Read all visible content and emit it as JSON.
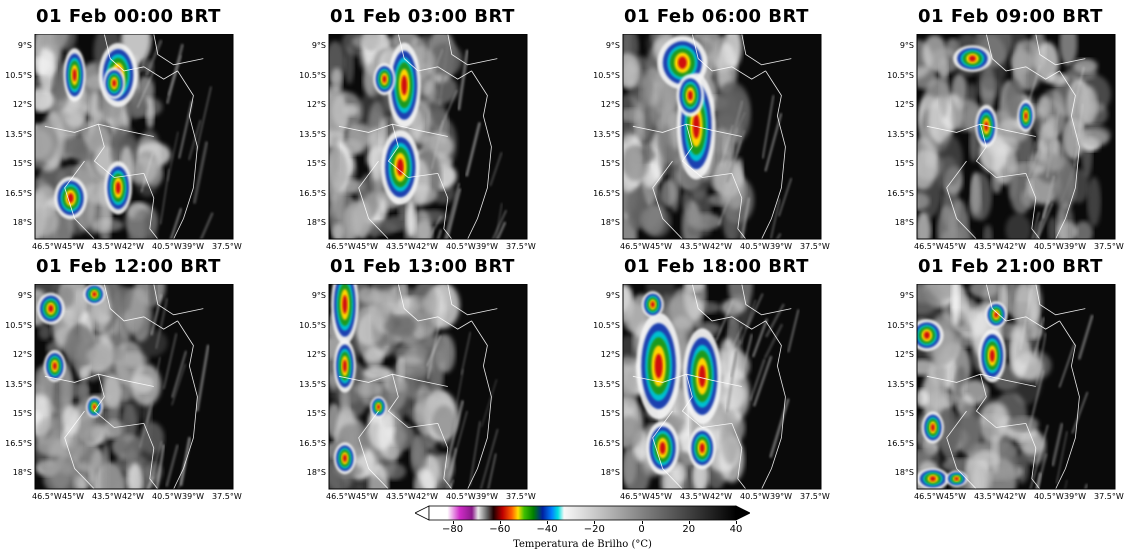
{
  "panels": [
    {
      "title": "01 Feb 00:00 BRT"
    },
    {
      "title": "01 Feb 03:00 BRT"
    },
    {
      "title": "01 Feb 06:00 BRT"
    },
    {
      "title": "01 Feb 09:00 BRT"
    },
    {
      "title": "01 Feb 12:00 BRT"
    },
    {
      "title": "01 Feb 13:00 BRT"
    },
    {
      "title": "01 Feb 18:00 BRT"
    },
    {
      "title": "01 Feb 21:00 BRT"
    }
  ],
  "lat_ticks": [
    "9°S",
    "10.5°S",
    "12°S",
    "13.5°S",
    "15°S",
    "16.5°S",
    "18°S"
  ],
  "lon_ticks": [
    "46.5°W",
    "45°W",
    "43.5°W",
    "42°W",
    "40.5°W",
    "39°W",
    "37.5°W"
  ],
  "colorbar": {
    "label": "Temperatura de Brilho (°C)",
    "ticks": [
      "−80",
      "−60",
      "−40",
      "−20",
      "0",
      "20",
      "40"
    ],
    "range": [
      -90,
      40
    ]
  }
}
